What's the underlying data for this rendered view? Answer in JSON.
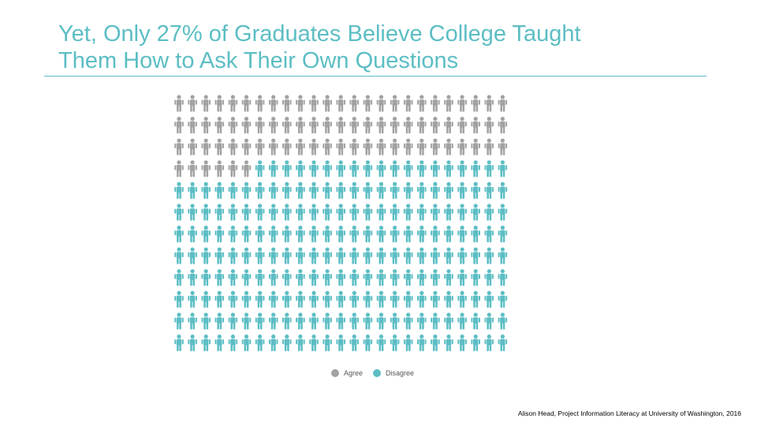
{
  "slide": {
    "title_line1": "Yet, Only 27% of Graduates Believe College Taught",
    "title_line2": "Them How to Ask Their Own Questions",
    "source": "Alison Head, Project Information Literacy at University of Washington, 2016"
  },
  "chart_data": {
    "type": "pictogram",
    "total_icons": 300,
    "rows": 12,
    "columns": 25,
    "series": [
      {
        "name": "Agree",
        "count": 81,
        "percent": 27,
        "color": "#a2a2a2"
      },
      {
        "name": "Disagree",
        "count": 219,
        "percent": 73,
        "color": "#5cbec4"
      }
    ],
    "fill_order": "row-major, Agree first",
    "legend_position": "bottom-center"
  }
}
